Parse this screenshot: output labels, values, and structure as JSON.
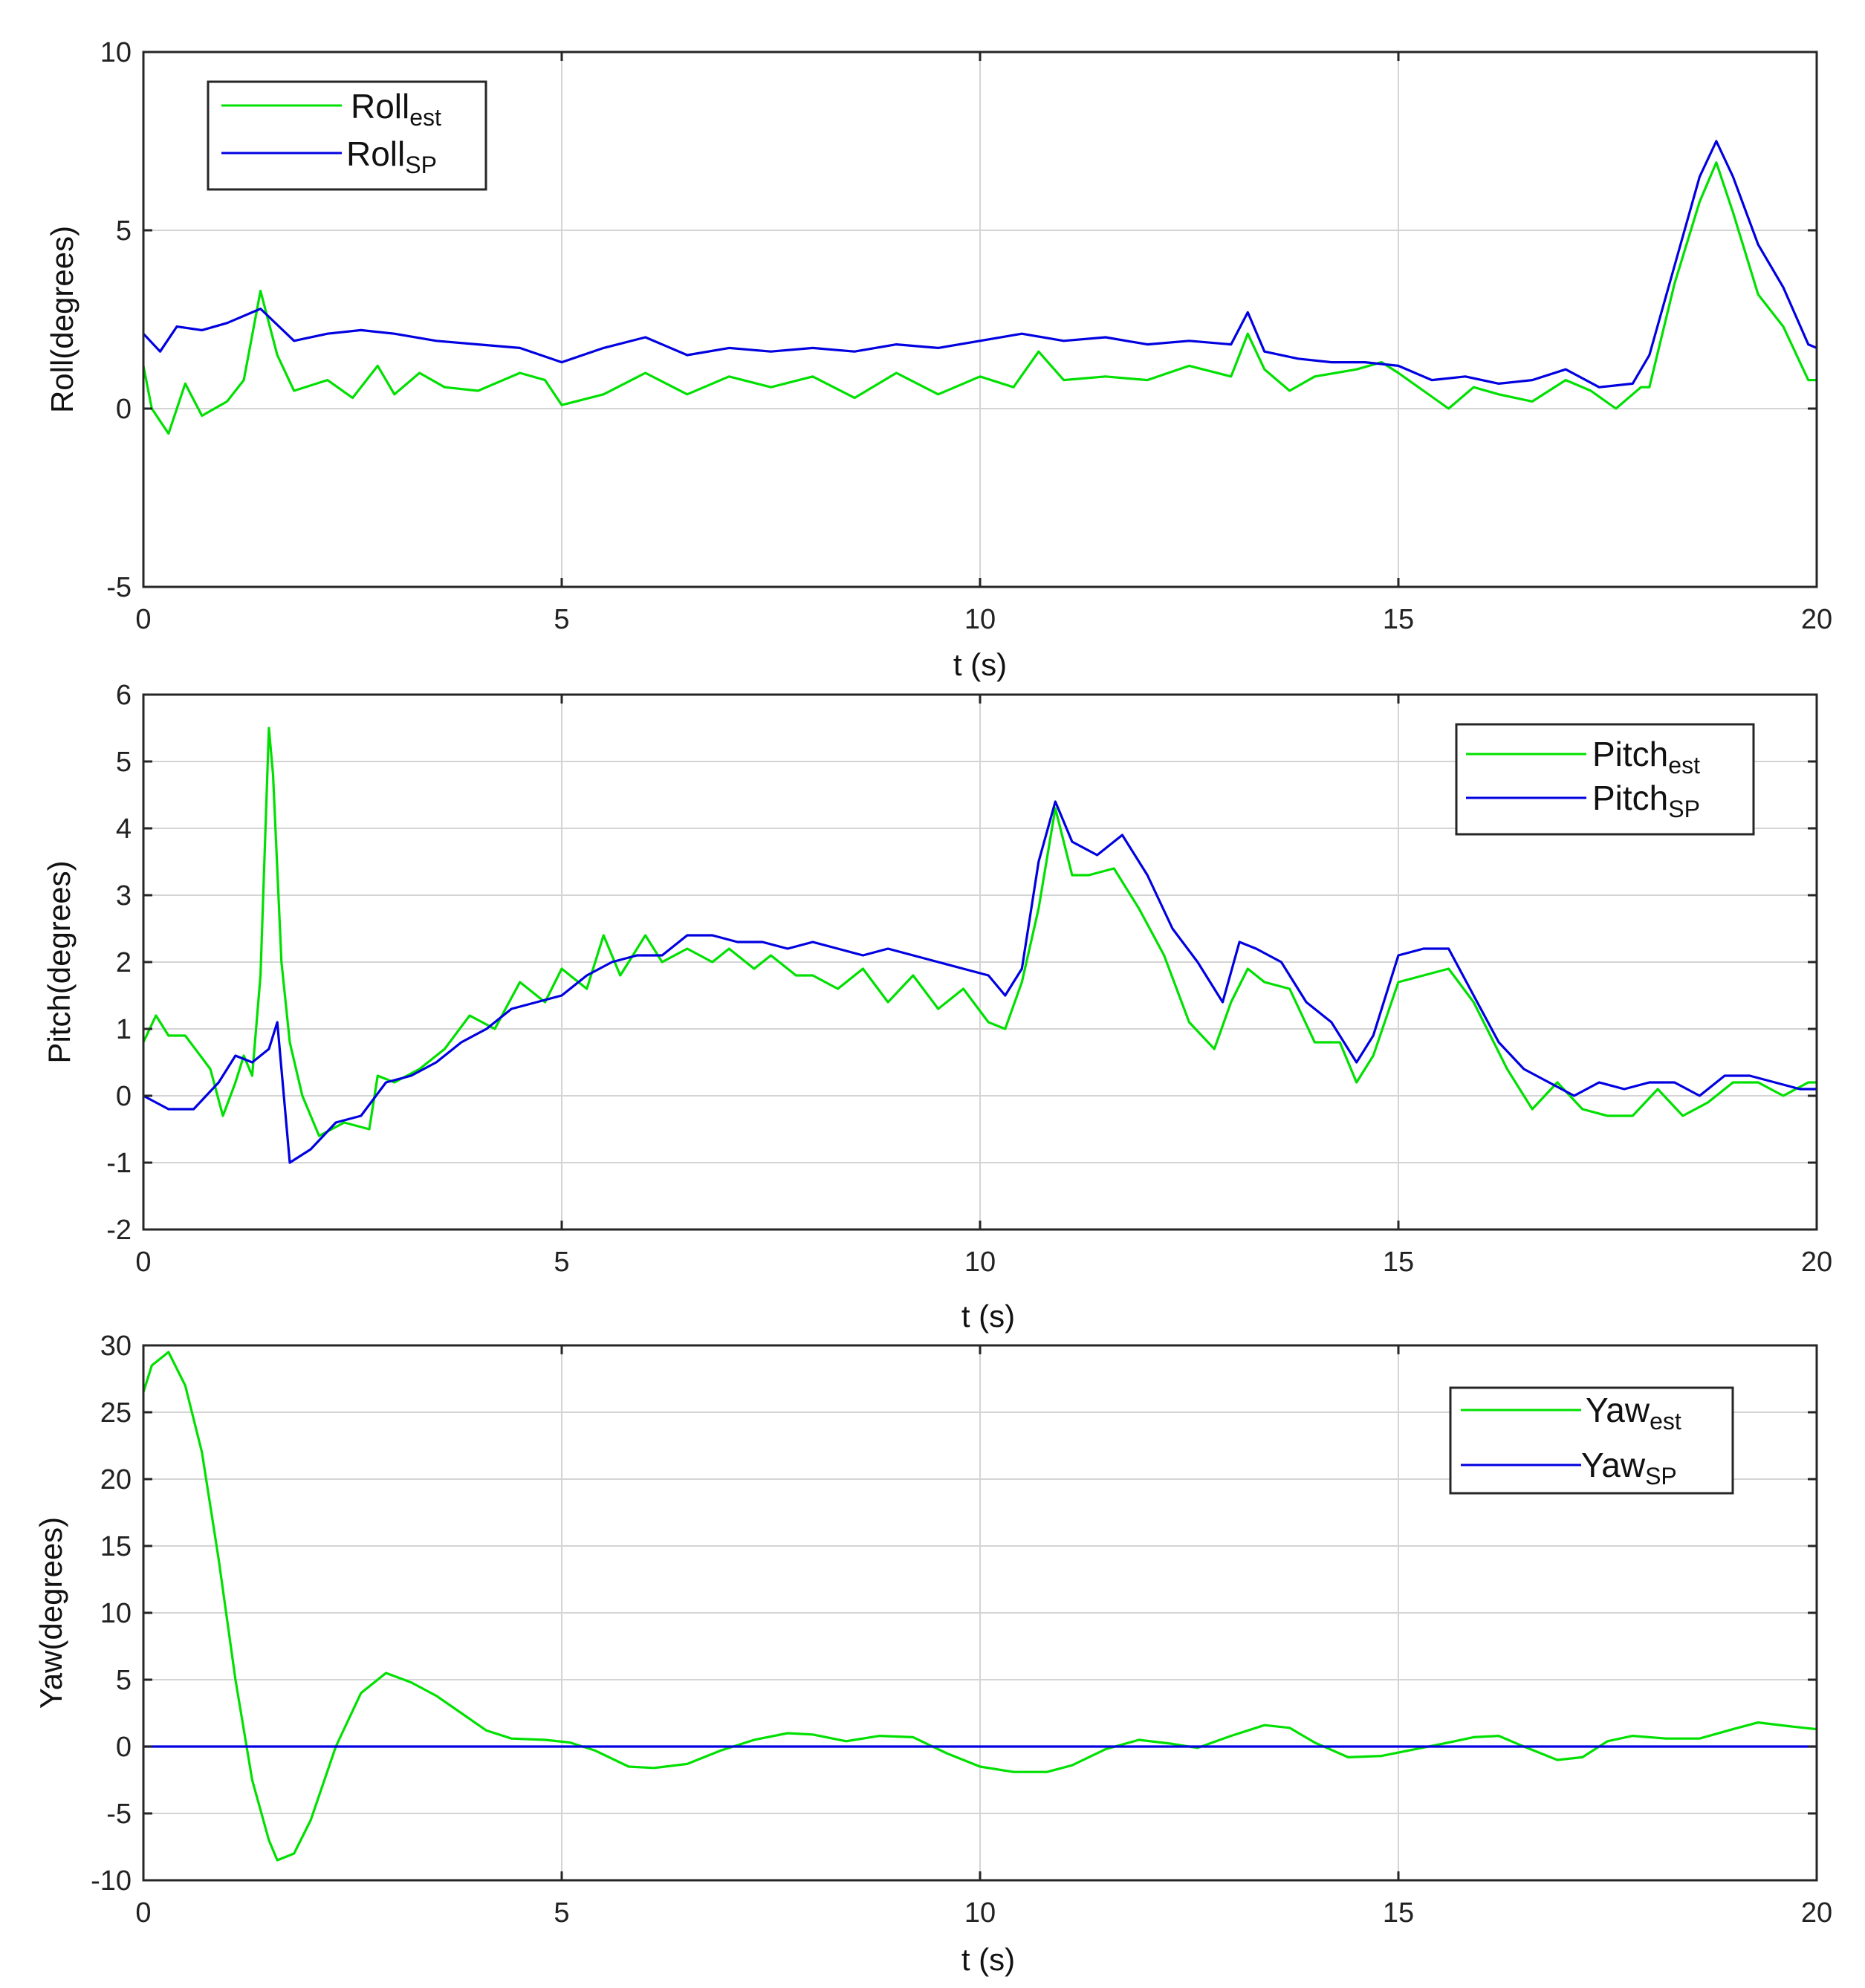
{
  "chart_data": [
    {
      "type": "line",
      "title": "",
      "xlabel": "t (s)",
      "ylabel": "Roll(degrees)",
      "xlim": [
        0,
        20
      ],
      "ylim": [
        -5,
        10
      ],
      "xticks": [
        0,
        5,
        10,
        15,
        20
      ],
      "yticks": [
        -5,
        0,
        5,
        10
      ],
      "grid": true,
      "legend_position": "top-left",
      "series": [
        {
          "name": "Roll",
          "subscript": "est",
          "color": "#00e000",
          "x": [
            0,
            0.1,
            0.3,
            0.5,
            0.7,
            1.0,
            1.2,
            1.4,
            1.6,
            1.8,
            2.2,
            2.5,
            2.8,
            3.0,
            3.3,
            3.6,
            4.0,
            4.5,
            4.8,
            5.0,
            5.5,
            6.0,
            6.5,
            7.0,
            7.5,
            8.0,
            8.5,
            9.0,
            9.5,
            10.0,
            10.4,
            10.7,
            11.0,
            11.5,
            12.0,
            12.5,
            13.0,
            13.2,
            13.4,
            13.7,
            14.0,
            14.5,
            14.8,
            15.0,
            15.3,
            15.6,
            15.9,
            16.2,
            16.6,
            17.0,
            17.3,
            17.6,
            17.9,
            18.0,
            18.3,
            18.6,
            18.8,
            19.0,
            19.3,
            19.6,
            19.9,
            20.0
          ],
          "values": [
            1.2,
            0.0,
            -0.7,
            0.7,
            -0.2,
            0.2,
            0.8,
            3.3,
            1.5,
            0.5,
            0.8,
            0.3,
            1.2,
            0.4,
            1.0,
            0.6,
            0.5,
            1.0,
            0.8,
            0.1,
            0.4,
            1.0,
            0.4,
            0.9,
            0.6,
            0.9,
            0.3,
            1.0,
            0.4,
            0.9,
            0.6,
            1.6,
            0.8,
            0.9,
            0.8,
            1.2,
            0.9,
            2.1,
            1.1,
            0.5,
            0.9,
            1.1,
            1.3,
            1.0,
            0.5,
            0.0,
            0.6,
            0.4,
            0.2,
            0.8,
            0.5,
            0.0,
            0.6,
            0.6,
            3.5,
            5.8,
            6.9,
            5.5,
            3.2,
            2.3,
            0.8,
            0.8
          ]
        },
        {
          "name": "Roll",
          "subscript": "SP",
          "color": "#0000e0",
          "x": [
            0,
            0.2,
            0.4,
            0.7,
            1.0,
            1.4,
            1.8,
            2.2,
            2.6,
            3.0,
            3.5,
            4.0,
            4.5,
            5.0,
            5.5,
            6.0,
            6.5,
            7.0,
            7.5,
            8.0,
            8.5,
            9.0,
            9.5,
            10.0,
            10.5,
            11.0,
            11.5,
            12.0,
            12.5,
            13.0,
            13.2,
            13.4,
            13.8,
            14.2,
            14.6,
            15.0,
            15.4,
            15.8,
            16.2,
            16.6,
            17.0,
            17.4,
            17.8,
            18.0,
            18.3,
            18.6,
            18.8,
            19.0,
            19.3,
            19.6,
            19.9,
            20.0
          ],
          "values": [
            2.1,
            1.6,
            2.3,
            2.2,
            2.4,
            2.8,
            1.9,
            2.1,
            2.2,
            2.1,
            1.9,
            1.8,
            1.7,
            1.3,
            1.7,
            2.0,
            1.5,
            1.7,
            1.6,
            1.7,
            1.6,
            1.8,
            1.7,
            1.9,
            2.1,
            1.9,
            2.0,
            1.8,
            1.9,
            1.8,
            2.7,
            1.6,
            1.4,
            1.3,
            1.3,
            1.2,
            0.8,
            0.9,
            0.7,
            0.8,
            1.1,
            0.6,
            0.7,
            1.5,
            4.0,
            6.5,
            7.5,
            6.5,
            4.6,
            3.4,
            1.8,
            1.7
          ]
        }
      ]
    },
    {
      "type": "line",
      "title": "",
      "xlabel": "t (s)",
      "ylabel": "Pitch(degrees)",
      "xlim": [
        0,
        20
      ],
      "ylim": [
        -2,
        6
      ],
      "xticks": [
        0,
        5,
        10,
        15,
        20
      ],
      "yticks": [
        -2,
        -1,
        0,
        1,
        2,
        3,
        4,
        5,
        6
      ],
      "grid": true,
      "legend_position": "top-right",
      "series": [
        {
          "name": "Pitch",
          "subscript": "est",
          "color": "#00e000",
          "x": [
            0,
            0.15,
            0.3,
            0.5,
            0.8,
            0.95,
            1.1,
            1.2,
            1.3,
            1.4,
            1.5,
            1.55,
            1.65,
            1.75,
            1.9,
            2.1,
            2.4,
            2.7,
            2.8,
            3.0,
            3.3,
            3.6,
            3.9,
            4.2,
            4.5,
            4.8,
            5.0,
            5.3,
            5.5,
            5.7,
            6.0,
            6.2,
            6.5,
            6.8,
            7.0,
            7.3,
            7.5,
            7.8,
            8.0,
            8.3,
            8.6,
            8.9,
            9.2,
            9.5,
            9.8,
            10.1,
            10.3,
            10.5,
            10.7,
            10.9,
            11.1,
            11.3,
            11.6,
            11.9,
            12.2,
            12.5,
            12.8,
            13.0,
            13.2,
            13.4,
            13.7,
            14.0,
            14.3,
            14.5,
            14.7,
            15.0,
            15.3,
            15.6,
            15.9,
            16.3,
            16.6,
            16.9,
            17.2,
            17.5,
            17.8,
            18.1,
            18.4,
            18.7,
            19.0,
            19.3,
            19.6,
            19.9,
            20.0
          ],
          "values": [
            0.8,
            1.2,
            0.9,
            0.9,
            0.4,
            -0.3,
            0.2,
            0.6,
            0.3,
            1.8,
            5.5,
            4.8,
            2.0,
            0.8,
            0.0,
            -0.6,
            -0.4,
            -0.5,
            0.3,
            0.2,
            0.4,
            0.7,
            1.2,
            1.0,
            1.7,
            1.4,
            1.9,
            1.6,
            2.4,
            1.8,
            2.4,
            2.0,
            2.2,
            2.0,
            2.2,
            1.9,
            2.1,
            1.8,
            1.8,
            1.6,
            1.9,
            1.4,
            1.8,
            1.3,
            1.6,
            1.1,
            1.0,
            1.7,
            2.8,
            4.3,
            3.3,
            3.3,
            3.4,
            2.8,
            2.1,
            1.1,
            0.7,
            1.4,
            1.9,
            1.7,
            1.6,
            0.8,
            0.8,
            0.2,
            0.6,
            1.7,
            1.8,
            1.9,
            1.4,
            0.4,
            -0.2,
            0.2,
            -0.2,
            -0.3,
            -0.3,
            0.1,
            -0.3,
            -0.1,
            0.2,
            0.2,
            0.0,
            0.2,
            0.2
          ]
        },
        {
          "name": "Pitch",
          "subscript": "SP",
          "color": "#0000e0",
          "x": [
            0,
            0.3,
            0.6,
            0.9,
            1.1,
            1.3,
            1.5,
            1.6,
            1.75,
            2.0,
            2.3,
            2.6,
            2.9,
            3.2,
            3.5,
            3.8,
            4.1,
            4.4,
            4.7,
            5.0,
            5.3,
            5.6,
            5.9,
            6.2,
            6.5,
            6.8,
            7.1,
            7.4,
            7.7,
            8.0,
            8.3,
            8.6,
            8.9,
            9.2,
            9.5,
            9.8,
            10.1,
            10.3,
            10.5,
            10.7,
            10.9,
            11.1,
            11.4,
            11.7,
            12.0,
            12.3,
            12.6,
            12.9,
            13.1,
            13.3,
            13.6,
            13.9,
            14.2,
            14.5,
            14.7,
            15.0,
            15.3,
            15.6,
            15.9,
            16.2,
            16.5,
            16.8,
            17.1,
            17.4,
            17.7,
            18.0,
            18.3,
            18.6,
            18.9,
            19.2,
            19.5,
            19.8,
            20.0
          ],
          "values": [
            0.0,
            -0.2,
            -0.2,
            0.2,
            0.6,
            0.5,
            0.7,
            1.1,
            -1.0,
            -0.8,
            -0.4,
            -0.3,
            0.2,
            0.3,
            0.5,
            0.8,
            1.0,
            1.3,
            1.4,
            1.5,
            1.8,
            2.0,
            2.1,
            2.1,
            2.4,
            2.4,
            2.3,
            2.3,
            2.2,
            2.3,
            2.2,
            2.1,
            2.2,
            2.1,
            2.0,
            1.9,
            1.8,
            1.5,
            1.9,
            3.5,
            4.4,
            3.8,
            3.6,
            3.9,
            3.3,
            2.5,
            2.0,
            1.4,
            2.3,
            2.2,
            2.0,
            1.4,
            1.1,
            0.5,
            0.9,
            2.1,
            2.2,
            2.2,
            1.5,
            0.8,
            0.4,
            0.2,
            0.0,
            0.2,
            0.1,
            0.2,
            0.2,
            0.0,
            0.3,
            0.3,
            0.2,
            0.1,
            0.1
          ]
        }
      ]
    },
    {
      "type": "line",
      "title": "",
      "xlabel": "t (s)",
      "ylabel": "Yaw(degrees)",
      "xlim": [
        0,
        20
      ],
      "ylim": [
        -10,
        30
      ],
      "xticks": [
        0,
        5,
        10,
        15,
        20
      ],
      "yticks": [
        -10,
        -5,
        0,
        5,
        10,
        15,
        20,
        25,
        30
      ],
      "grid": true,
      "legend_position": "top-right",
      "series": [
        {
          "name": "Yaw",
          "subscript": "est",
          "color": "#00e000",
          "x": [
            0,
            0.1,
            0.3,
            0.5,
            0.7,
            0.9,
            1.1,
            1.3,
            1.5,
            1.6,
            1.8,
            2.0,
            2.3,
            2.6,
            2.9,
            3.2,
            3.5,
            3.8,
            4.1,
            4.4,
            4.8,
            5.1,
            5.4,
            5.8,
            6.1,
            6.5,
            6.9,
            7.3,
            7.7,
            8.0,
            8.4,
            8.8,
            9.2,
            9.6,
            10.0,
            10.4,
            10.8,
            11.1,
            11.5,
            11.9,
            12.3,
            12.6,
            13.0,
            13.4,
            13.7,
            14.0,
            14.4,
            14.8,
            15.2,
            15.6,
            15.9,
            16.2,
            16.5,
            16.9,
            17.2,
            17.5,
            17.8,
            18.2,
            18.6,
            19.0,
            19.3,
            19.7,
            20.0
          ],
          "values": [
            26.5,
            28.5,
            29.5,
            27.0,
            22.0,
            14.0,
            5.0,
            -2.5,
            -7.0,
            -8.5,
            -8.0,
            -5.5,
            0.0,
            4.0,
            5.5,
            4.8,
            3.8,
            2.5,
            1.2,
            0.6,
            0.5,
            0.3,
            -0.3,
            -1.5,
            -1.6,
            -1.3,
            -0.3,
            0.5,
            1.0,
            0.9,
            0.4,
            0.8,
            0.7,
            -0.5,
            -1.5,
            -1.9,
            -1.9,
            -1.4,
            -0.2,
            0.5,
            0.2,
            -0.1,
            0.8,
            1.6,
            1.4,
            0.3,
            -0.8,
            -0.7,
            -0.2,
            0.3,
            0.7,
            0.8,
            0.0,
            -1.0,
            -0.8,
            0.4,
            0.8,
            0.6,
            0.6,
            1.3,
            1.8,
            1.5,
            1.3
          ]
        },
        {
          "name": "Yaw",
          "subscript": "SP",
          "color": "#0000e0",
          "x": [
            0,
            20
          ],
          "values": [
            0,
            0
          ]
        }
      ]
    }
  ]
}
